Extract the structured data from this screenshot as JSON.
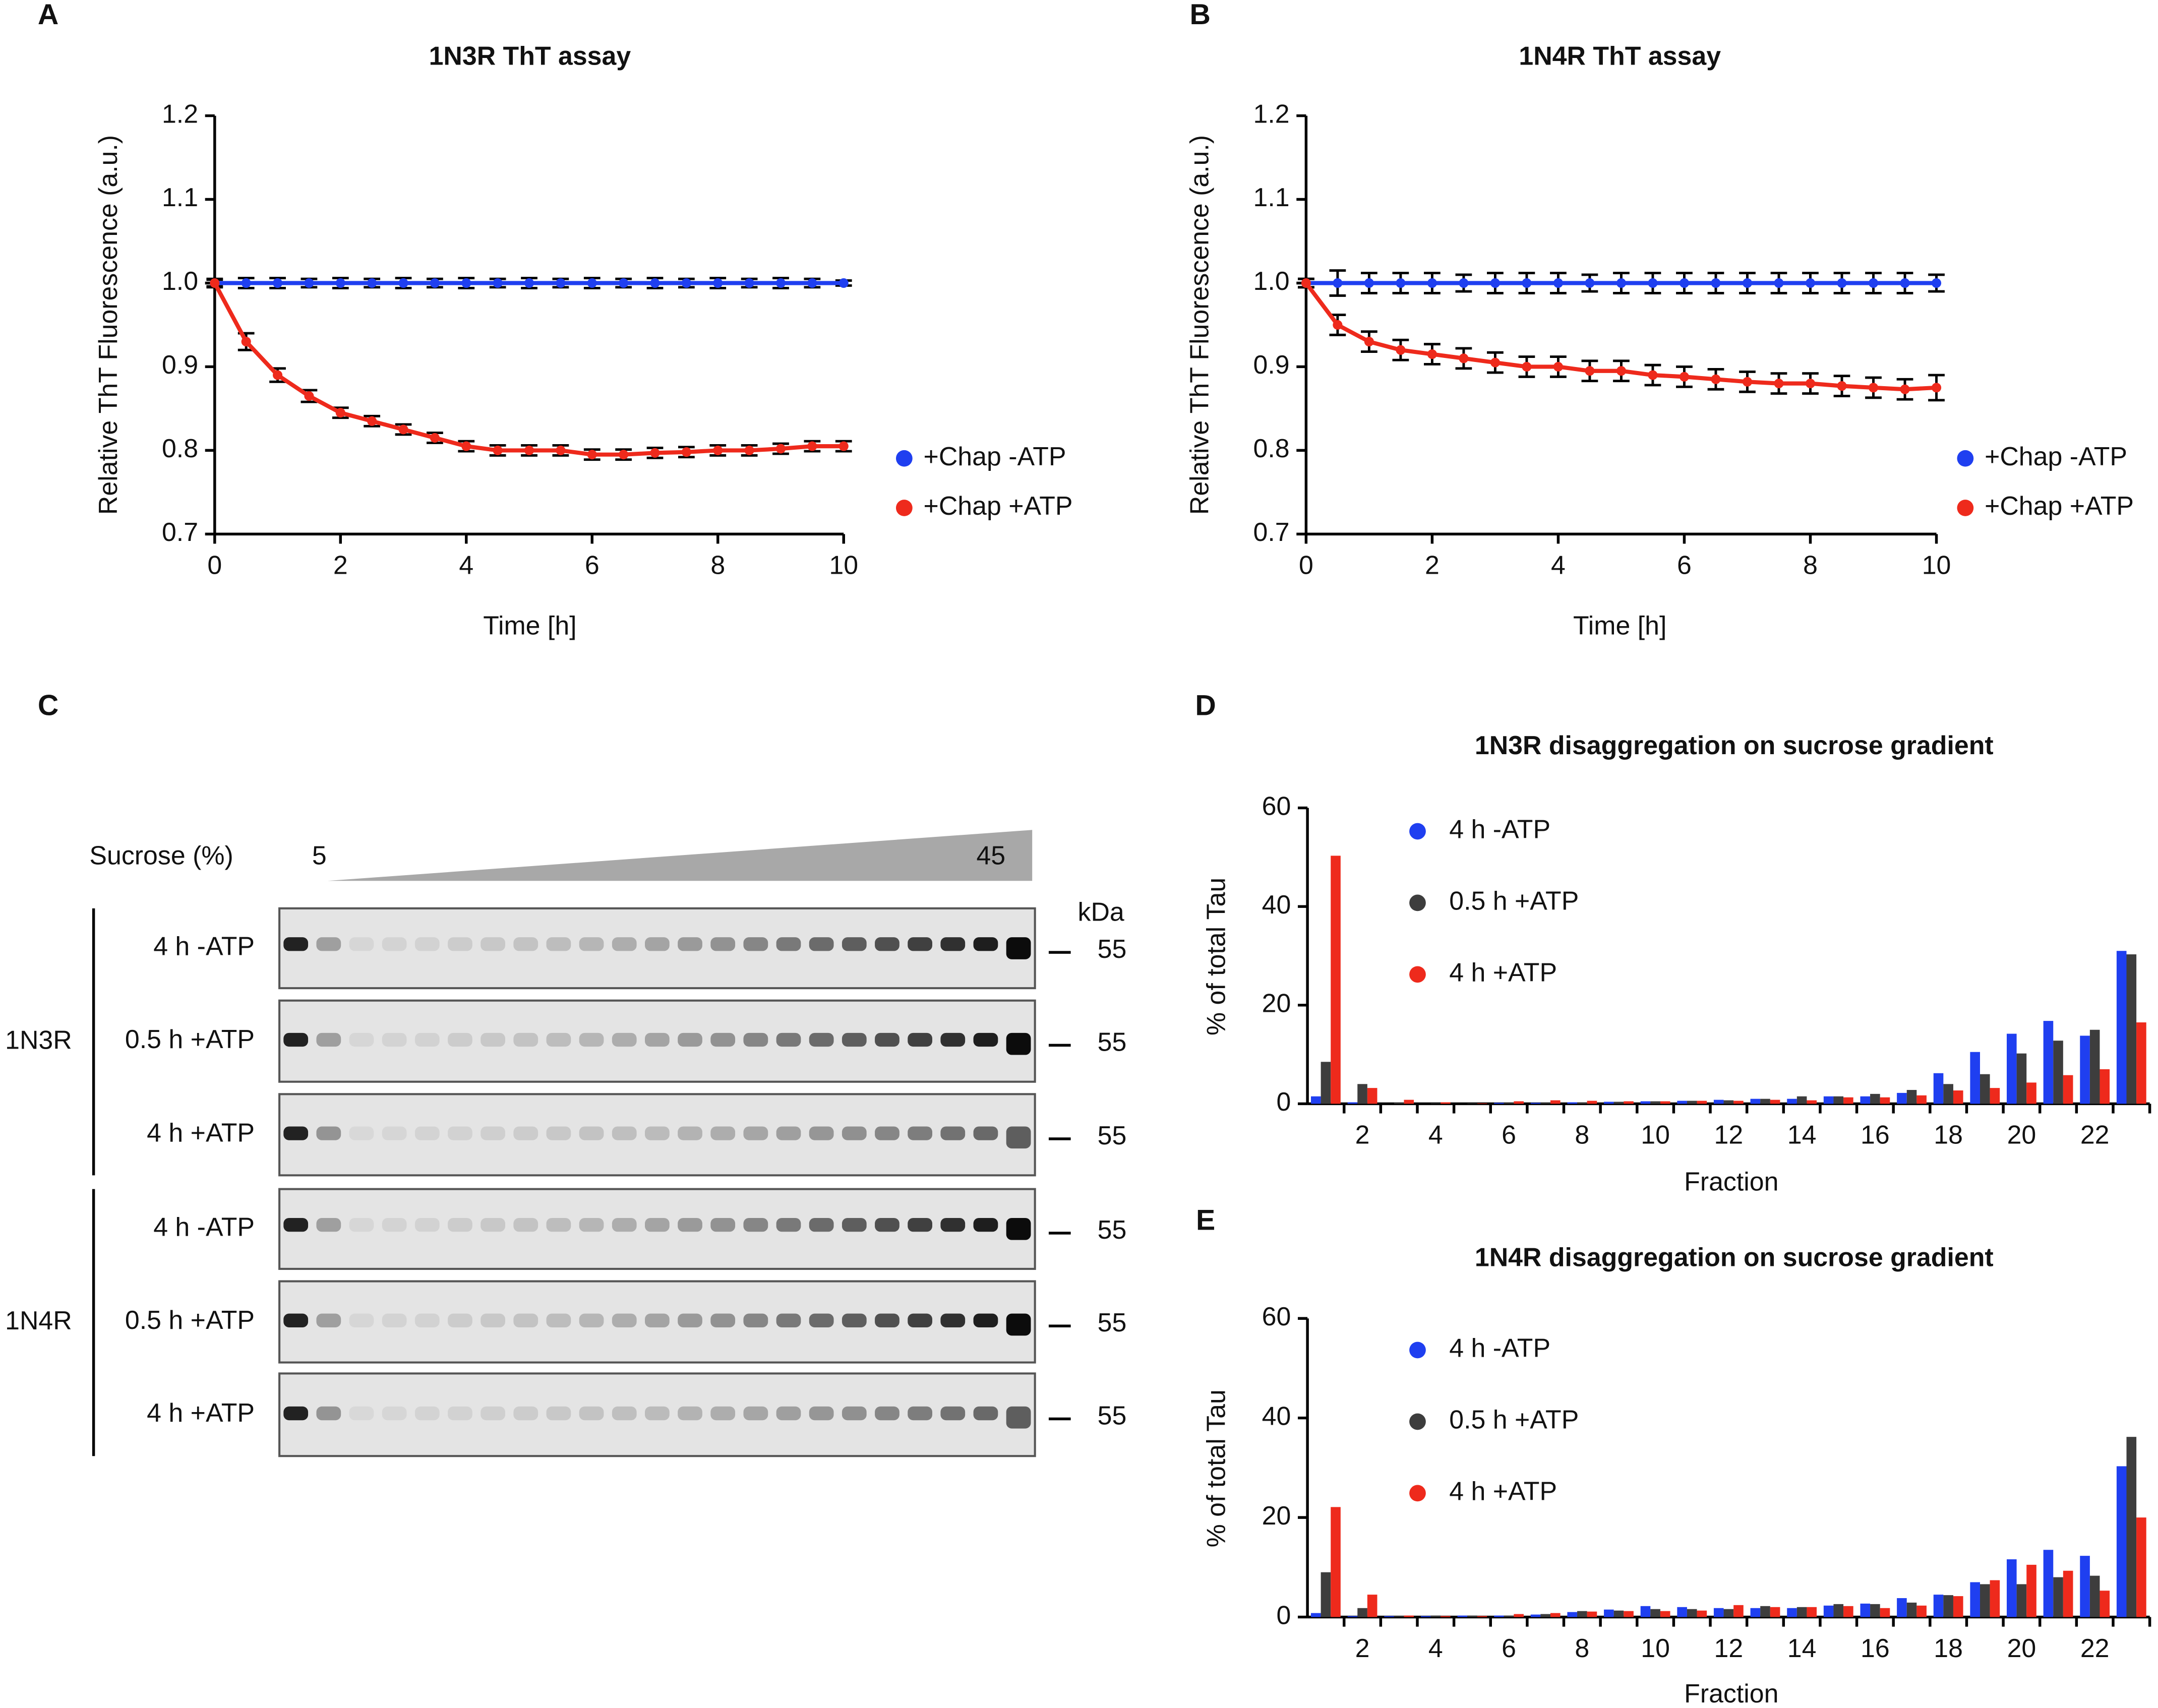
{
  "chart_data": [
    {
      "panel_label": "A",
      "type": "line",
      "title": "1N3R ThT assay",
      "x_label": "Time [h]",
      "y_label": "Relative ThT Fluorescence (a.u.)",
      "xlim": [
        0,
        10
      ],
      "ylim": [
        0.7,
        1.2
      ],
      "xticks": [
        0,
        2,
        4,
        6,
        8,
        10
      ],
      "yticks": [
        0.7,
        0.8,
        0.9,
        {
          "value": 1,
          "label": "1.0"
        },
        1.1,
        1.2
      ],
      "x": [
        0,
        0.5,
        1,
        1.5,
        2,
        2.5,
        3,
        3.5,
        4,
        4.5,
        5,
        5.5,
        6,
        6.5,
        7,
        7.5,
        8,
        8.5,
        9,
        9.5,
        10
      ],
      "series": [
        {
          "name": "+Chap -ATP",
          "color": "#1f3ff0",
          "values": [
            1,
            1,
            1,
            1,
            1,
            1,
            1,
            1,
            1,
            1,
            1,
            1,
            1,
            1,
            1,
            1,
            1,
            1,
            1,
            1,
            1
          ],
          "errors": [
            0.004,
            0.006,
            0.006,
            0.005,
            0.006,
            0.005,
            0.006,
            0.005,
            0.006,
            0.005,
            0.006,
            0.005,
            0.006,
            0.005,
            0.006,
            0.005,
            0.006,
            0.005,
            0.006,
            0.005,
            0.003
          ]
        },
        {
          "name": "+Chap +ATP",
          "color": "#ee2a1c",
          "values": [
            1,
            0.93,
            0.89,
            0.865,
            0.845,
            0.835,
            0.825,
            0.815,
            0.805,
            0.8,
            0.8,
            0.8,
            0.795,
            0.795,
            0.797,
            0.798,
            0.8,
            0.8,
            0.802,
            0.805,
            0.805
          ],
          "errors": [
            0.005,
            0.01,
            0.008,
            0.007,
            0.006,
            0.006,
            0.006,
            0.006,
            0.006,
            0.006,
            0.006,
            0.006,
            0.006,
            0.006,
            0.006,
            0.006,
            0.006,
            0.006,
            0.006,
            0.006,
            0.006
          ]
        }
      ],
      "legend": "right"
    },
    {
      "panel_label": "B",
      "type": "line",
      "title": "1N4R ThT assay",
      "x_label": "Time [h]",
      "y_label": "Relative ThT Fluorescence (a.u.)",
      "xlim": [
        0,
        10
      ],
      "ylim": [
        0.7,
        1.2
      ],
      "xticks": [
        0,
        2,
        4,
        6,
        8,
        10
      ],
      "yticks": [
        0.7,
        0.8,
        0.9,
        {
          "value": 1,
          "label": "1.0"
        },
        1.1,
        1.2
      ],
      "x": [
        0,
        0.5,
        1,
        1.5,
        2,
        2.5,
        3,
        3.5,
        4,
        4.5,
        5,
        5.5,
        6,
        6.5,
        7,
        7.5,
        8,
        8.5,
        9,
        9.5,
        10
      ],
      "series": [
        {
          "name": "+Chap -ATP",
          "color": "#1f3ff0",
          "values": [
            1,
            1,
            1,
            1,
            1,
            1,
            1,
            1,
            1,
            1,
            1,
            1,
            1,
            1,
            1,
            1,
            1,
            1,
            1,
            1,
            1
          ],
          "errors": [
            0.005,
            0.015,
            0.012,
            0.012,
            0.012,
            0.01,
            0.012,
            0.012,
            0.012,
            0.01,
            0.012,
            0.012,
            0.012,
            0.012,
            0.012,
            0.012,
            0.012,
            0.012,
            0.012,
            0.012,
            0.01
          ]
        },
        {
          "name": "+Chap +ATP",
          "color": "#ee2a1c",
          "values": [
            1,
            0.95,
            0.93,
            0.92,
            0.915,
            0.91,
            0.905,
            0.9,
            0.9,
            0.895,
            0.895,
            0.89,
            0.888,
            0.885,
            0.882,
            0.88,
            0.88,
            0.877,
            0.875,
            0.873,
            0.875
          ],
          "errors": [
            0.005,
            0.012,
            0.012,
            0.012,
            0.012,
            0.012,
            0.012,
            0.012,
            0.012,
            0.012,
            0.012,
            0.012,
            0.012,
            0.012,
            0.012,
            0.012,
            0.012,
            0.012,
            0.012,
            0.012,
            0.015
          ]
        }
      ],
      "legend": "right"
    },
    {
      "panel_label": "D",
      "type": "bar",
      "title": "1N3R disaggregation on sucrose gradient",
      "x_label": "Fraction",
      "y_label": "% of total Tau",
      "ylim": [
        0,
        60
      ],
      "yticks": [
        0,
        20,
        40,
        60
      ],
      "categories": [
        null,
        2,
        null,
        4,
        null,
        6,
        null,
        8,
        null,
        10,
        null,
        12,
        null,
        14,
        null,
        16,
        null,
        18,
        null,
        20,
        null,
        22,
        null
      ],
      "series": [
        {
          "name": "4 h -ATP",
          "color": "#1f3ff0",
          "values": [
            1.5,
            0.3,
            0,
            0,
            0,
            0.2,
            0.2,
            0.3,
            0.4,
            0.5,
            0.6,
            0.8,
            1,
            1,
            1.5,
            1.5,
            2.2,
            6.2,
            10.5,
            14.2,
            16.8,
            13.8,
            31
          ]
        },
        {
          "name": "0.5 h +ATP",
          "color": "#3d3d3d",
          "values": [
            8.5,
            4,
            0.2,
            0.1,
            0.1,
            0.2,
            0.2,
            0.3,
            0.4,
            0.5,
            0.6,
            0.7,
            1,
            1.5,
            1.5,
            2,
            2.8,
            4,
            6,
            10.2,
            12.8,
            15,
            30.3
          ]
        },
        {
          "name": "4 h +ATP",
          "color": "#ee2a1c",
          "values": [
            50.3,
            3.2,
            0.8,
            0.3,
            0.1,
            0.5,
            0.7,
            0.6,
            0.5,
            0.5,
            0.6,
            0.6,
            0.8,
            0.7,
            1.3,
            1.3,
            1.7,
            2.7,
            3.2,
            4.3,
            5.8,
            7,
            16.5
          ]
        }
      ]
    },
    {
      "panel_label": "E",
      "type": "bar",
      "title": "1N4R disaggregation on sucrose gradient",
      "x_label": "Fraction",
      "y_label": "% of total Tau",
      "ylim": [
        0,
        60
      ],
      "yticks": [
        0,
        20,
        40,
        60
      ],
      "categories": [
        null,
        2,
        null,
        4,
        null,
        6,
        null,
        8,
        null,
        10,
        null,
        12,
        null,
        14,
        null,
        16,
        null,
        18,
        null,
        20,
        null,
        22,
        null
      ],
      "series": [
        {
          "name": "4 h -ATP",
          "color": "#1f3ff0",
          "values": [
            0.8,
            0.2,
            0.2,
            0.2,
            0.3,
            0.3,
            0.5,
            1,
            1.5,
            2.2,
            2,
            1.8,
            1.8,
            1.8,
            2.3,
            2.7,
            3.8,
            4.5,
            7,
            11.6,
            13.5,
            12.3,
            30.3
          ]
        },
        {
          "name": "0.5 h +ATP",
          "color": "#3d3d3d",
          "values": [
            9,
            1.8,
            0.2,
            0.3,
            0.3,
            0.3,
            0.6,
            1.2,
            1.3,
            1.6,
            1.6,
            1.6,
            2.2,
            2,
            2.6,
            2.6,
            2.9,
            4.4,
            6.6,
            6.6,
            8,
            8.3,
            36.2
          ]
        },
        {
          "name": "4 h +ATP",
          "color": "#ee2a1c",
          "values": [
            22.1,
            4.5,
            0.3,
            0.2,
            0.2,
            0.6,
            0.8,
            1.1,
            1.2,
            1.2,
            1.3,
            2.4,
            2,
            2,
            2.2,
            1.8,
            2.3,
            4.2,
            7.4,
            10.5,
            9.3,
            5.3,
            20
          ]
        }
      ]
    }
  ],
  "blot": {
    "panel_label": "C",
    "sucrose_label": "Sucrose (%)",
    "sucrose_start": 5,
    "sucrose_end": 45,
    "mw_unit": "kDa",
    "groups": [
      {
        "name": "1N3R",
        "rows": [
          {
            "label": "4 h -ATP",
            "mw": 55
          },
          {
            "label": "0.5 h +ATP",
            "mw": 55
          },
          {
            "label": "4 h +ATP",
            "mw": 55
          }
        ]
      },
      {
        "name": "1N4R",
        "rows": [
          {
            "label": "4 h -ATP",
            "mw": 55
          },
          {
            "label": "0.5 h +ATP",
            "mw": 55
          },
          {
            "label": "4 h +ATP",
            "mw": 55
          }
        ]
      }
    ]
  }
}
